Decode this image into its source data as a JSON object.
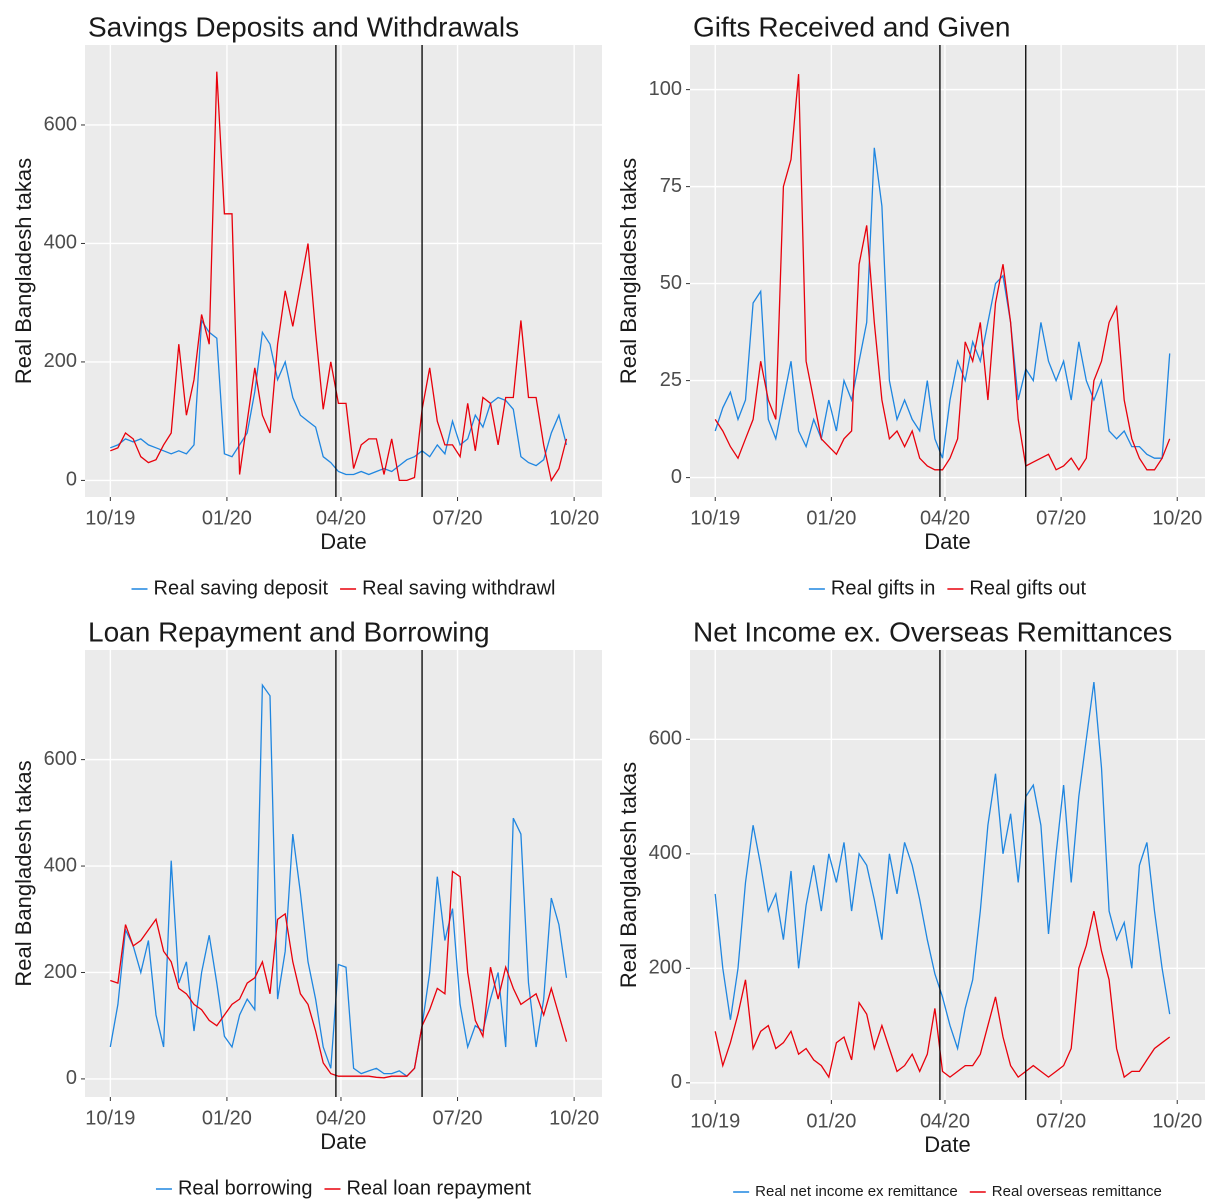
{
  "chart_data": [
    {
      "type": "line",
      "title": "Savings Deposits and Withdrawals",
      "x_label": "Date",
      "y_label": "Real Bangladesh takas",
      "x": [
        0,
        6,
        12,
        18,
        24,
        30,
        36,
        42,
        48,
        54,
        60,
        66,
        72,
        78,
        84,
        90,
        96,
        102,
        108,
        114,
        120,
        126,
        132,
        138,
        144,
        150,
        156,
        162,
        168,
        174,
        180,
        186,
        192,
        198,
        204,
        210,
        216,
        222,
        228,
        234,
        240,
        246,
        252,
        258,
        264,
        270,
        276,
        282,
        288,
        294,
        300,
        306,
        312,
        318,
        324,
        330,
        336,
        342,
        348,
        354,
        360
      ],
      "xlim": [
        -20,
        388
      ],
      "xticks": [
        {
          "value": 0,
          "label": "10/19"
        },
        {
          "value": 92,
          "label": "01/20"
        },
        {
          "value": 182,
          "label": "04/20"
        },
        {
          "value": 274,
          "label": "07/20"
        },
        {
          "value": 366,
          "label": "10/20"
        }
      ],
      "ylim": [
        -28,
        735
      ],
      "yticks": [
        0,
        200,
        400,
        600
      ],
      "grid": true,
      "vlines": [
        178,
        246
      ],
      "series": [
        {
          "name": "Real saving deposit",
          "color": "#1f86e0",
          "values": [
            55,
            60,
            70,
            65,
            70,
            60,
            55,
            50,
            45,
            50,
            45,
            60,
            270,
            250,
            240,
            45,
            40,
            60,
            80,
            150,
            250,
            230,
            170,
            200,
            140,
            110,
            100,
            90,
            40,
            30,
            15,
            10,
            10,
            15,
            10,
            15,
            20,
            15,
            25,
            35,
            40,
            50,
            40,
            60,
            45,
            100,
            60,
            70,
            110,
            90,
            130,
            140,
            135,
            120,
            40,
            30,
            25,
            35,
            80,
            110,
            60
          ]
        },
        {
          "name": "Real saving withdrawl",
          "color": "#e8000b",
          "values": [
            50,
            55,
            80,
            70,
            40,
            30,
            35,
            60,
            80,
            230,
            110,
            170,
            280,
            230,
            690,
            450,
            450,
            10,
            100,
            190,
            110,
            80,
            230,
            320,
            260,
            330,
            400,
            250,
            120,
            200,
            130,
            130,
            20,
            60,
            70,
            70,
            10,
            70,
            0,
            0,
            5,
            120,
            190,
            100,
            60,
            60,
            40,
            130,
            50,
            140,
            130,
            60,
            140,
            140,
            270,
            140,
            140,
            60,
            0,
            20,
            70
          ]
        }
      ]
    },
    {
      "type": "line",
      "title": "Gifts Received and Given",
      "x_label": "Date",
      "y_label": "Real Bangladesh takas",
      "x": [
        0,
        6,
        12,
        18,
        24,
        30,
        36,
        42,
        48,
        54,
        60,
        66,
        72,
        78,
        84,
        90,
        96,
        102,
        108,
        114,
        120,
        126,
        132,
        138,
        144,
        150,
        156,
        162,
        168,
        174,
        180,
        186,
        192,
        198,
        204,
        210,
        216,
        222,
        228,
        234,
        240,
        246,
        252,
        258,
        264,
        270,
        276,
        282,
        288,
        294,
        300,
        306,
        312,
        318,
        324,
        330,
        336,
        342,
        348,
        354,
        360
      ],
      "xlim": [
        -20,
        388
      ],
      "xticks": [
        {
          "value": 0,
          "label": "10/19"
        },
        {
          "value": 92,
          "label": "01/20"
        },
        {
          "value": 182,
          "label": "04/20"
        },
        {
          "value": 274,
          "label": "07/20"
        },
        {
          "value": 366,
          "label": "10/20"
        }
      ],
      "ylim": [
        -5,
        111.5
      ],
      "yticks": [
        0,
        25,
        50,
        75,
        100
      ],
      "grid": true,
      "vlines": [
        178,
        246
      ],
      "series": [
        {
          "name": "Real gifts in",
          "color": "#1f86e0",
          "values": [
            12,
            18,
            22,
            15,
            20,
            45,
            48,
            15,
            10,
            20,
            30,
            12,
            8,
            15,
            10,
            20,
            12,
            25,
            20,
            30,
            40,
            85,
            70,
            25,
            15,
            20,
            15,
            12,
            25,
            10,
            5,
            20,
            30,
            25,
            35,
            30,
            40,
            50,
            52,
            40,
            20,
            28,
            25,
            40,
            30,
            25,
            30,
            20,
            35,
            25,
            20,
            25,
            12,
            10,
            12,
            8,
            8,
            6,
            5,
            5,
            32
          ]
        },
        {
          "name": "Real gifts out",
          "color": "#e8000b",
          "values": [
            15,
            12,
            8,
            5,
            10,
            15,
            30,
            20,
            15,
            75,
            82,
            104,
            30,
            20,
            10,
            8,
            6,
            10,
            12,
            55,
            65,
            40,
            20,
            10,
            12,
            8,
            12,
            5,
            3,
            2,
            2,
            5,
            10,
            35,
            30,
            40,
            20,
            45,
            55,
            40,
            15,
            3,
            4,
            5,
            6,
            2,
            3,
            5,
            2,
            5,
            25,
            30,
            40,
            44,
            20,
            10,
            5,
            2,
            2,
            5,
            10
          ]
        }
      ]
    },
    {
      "type": "line",
      "title": "Loan Repayment and Borrowing",
      "x_label": "Date",
      "y_label": "Real Bangladesh takas",
      "x": [
        0,
        6,
        12,
        18,
        24,
        30,
        36,
        42,
        48,
        54,
        60,
        66,
        72,
        78,
        84,
        90,
        96,
        102,
        108,
        114,
        120,
        126,
        132,
        138,
        144,
        150,
        156,
        162,
        168,
        174,
        180,
        186,
        192,
        198,
        204,
        210,
        216,
        222,
        228,
        234,
        240,
        246,
        252,
        258,
        264,
        270,
        276,
        282,
        288,
        294,
        300,
        306,
        312,
        318,
        324,
        330,
        336,
        342,
        348,
        354,
        360
      ],
      "xlim": [
        -20,
        388
      ],
      "xticks": [
        {
          "value": 0,
          "label": "10/19"
        },
        {
          "value": 92,
          "label": "01/20"
        },
        {
          "value": 182,
          "label": "04/20"
        },
        {
          "value": 274,
          "label": "07/20"
        },
        {
          "value": 366,
          "label": "10/20"
        }
      ],
      "ylim": [
        -34,
        806
      ],
      "yticks": [
        0,
        200,
        400,
        600
      ],
      "grid": true,
      "vlines": [
        178,
        246
      ],
      "series": [
        {
          "name": "Real borrowing",
          "color": "#1f86e0",
          "values": [
            60,
            140,
            280,
            250,
            200,
            260,
            120,
            60,
            410,
            180,
            220,
            90,
            200,
            270,
            180,
            80,
            60,
            120,
            150,
            130,
            740,
            720,
            150,
            240,
            460,
            350,
            220,
            150,
            60,
            20,
            215,
            210,
            20,
            10,
            15,
            20,
            10,
            10,
            15,
            5,
            20,
            100,
            200,
            380,
            260,
            320,
            140,
            60,
            100,
            90,
            150,
            200,
            60,
            490,
            460,
            180,
            60,
            150,
            340,
            290,
            190
          ]
        },
        {
          "name": "Real loan repayment",
          "color": "#e8000b",
          "values": [
            185,
            180,
            290,
            250,
            260,
            280,
            300,
            240,
            220,
            170,
            160,
            140,
            130,
            110,
            100,
            120,
            140,
            150,
            180,
            190,
            220,
            160,
            300,
            310,
            220,
            160,
            140,
            90,
            30,
            10,
            5,
            5,
            5,
            5,
            5,
            3,
            2,
            5,
            5,
            5,
            20,
            100,
            130,
            170,
            160,
            390,
            380,
            200,
            110,
            80,
            210,
            150,
            210,
            170,
            140,
            150,
            160,
            120,
            170,
            120,
            70
          ]
        }
      ]
    },
    {
      "type": "line",
      "title": "Net Income ex. Overseas Remittances",
      "x_label": "Date",
      "y_label": "Real Bangladesh takas",
      "x": [
        0,
        6,
        12,
        18,
        24,
        30,
        36,
        42,
        48,
        54,
        60,
        66,
        72,
        78,
        84,
        90,
        96,
        102,
        108,
        114,
        120,
        126,
        132,
        138,
        144,
        150,
        156,
        162,
        168,
        174,
        180,
        186,
        192,
        198,
        204,
        210,
        216,
        222,
        228,
        234,
        240,
        246,
        252,
        258,
        264,
        270,
        276,
        282,
        288,
        294,
        300,
        306,
        312,
        318,
        324,
        330,
        336,
        342,
        348,
        354,
        360
      ],
      "xlim": [
        -20,
        388
      ],
      "xticks": [
        {
          "value": 0,
          "label": "10/19"
        },
        {
          "value": 92,
          "label": "01/20"
        },
        {
          "value": 182,
          "label": "04/20"
        },
        {
          "value": 274,
          "label": "07/20"
        },
        {
          "value": 366,
          "label": "10/20"
        }
      ],
      "ylim": [
        -30,
        756
      ],
      "yticks": [
        0,
        200,
        400,
        600
      ],
      "grid": true,
      "vlines": [
        178,
        246
      ],
      "series": [
        {
          "name": "Real net income ex remittance",
          "color": "#1f86e0",
          "values": [
            330,
            200,
            110,
            200,
            350,
            450,
            380,
            300,
            330,
            250,
            370,
            200,
            310,
            380,
            300,
            400,
            350,
            420,
            300,
            400,
            380,
            320,
            250,
            400,
            330,
            420,
            380,
            320,
            250,
            190,
            150,
            100,
            60,
            130,
            180,
            300,
            450,
            540,
            400,
            470,
            350,
            500,
            520,
            450,
            260,
            400,
            520,
            350,
            500,
            600,
            700,
            550,
            300,
            250,
            280,
            200,
            380,
            420,
            300,
            200,
            120
          ]
        },
        {
          "name": "Real overseas remittance",
          "color": "#e8000b",
          "values": [
            90,
            30,
            70,
            120,
            180,
            60,
            90,
            100,
            60,
            70,
            90,
            50,
            60,
            40,
            30,
            10,
            70,
            80,
            40,
            140,
            120,
            60,
            100,
            60,
            20,
            30,
            50,
            20,
            50,
            130,
            20,
            10,
            20,
            30,
            30,
            50,
            100,
            150,
            80,
            30,
            10,
            20,
            30,
            20,
            10,
            20,
            30,
            60,
            200,
            240,
            300,
            230,
            180,
            60,
            10,
            20,
            20,
            40,
            60,
            70,
            80
          ]
        }
      ]
    }
  ]
}
